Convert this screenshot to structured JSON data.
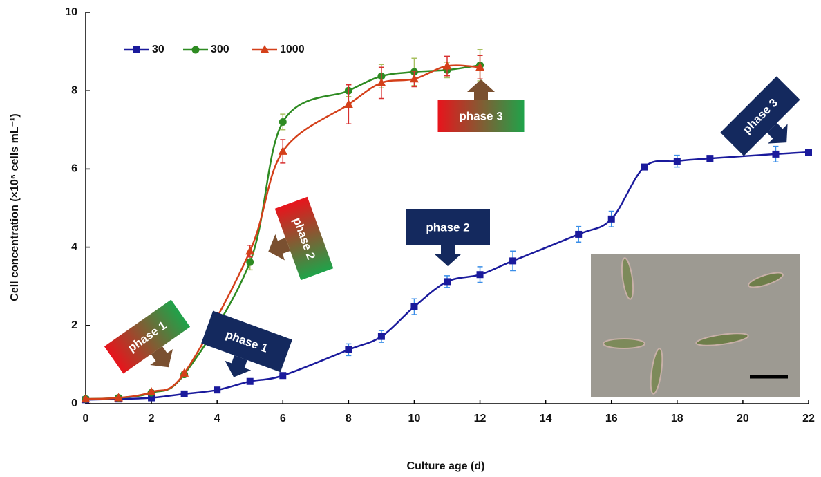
{
  "chart_data": {
    "type": "line",
    "x_label": "Culture age (d)",
    "y_label": "Cell concentration (×10⁶ cells mL⁻¹)",
    "xlim": [
      0,
      22
    ],
    "xticks": [
      0,
      2,
      4,
      6,
      8,
      10,
      12,
      14,
      16,
      18,
      20,
      22
    ],
    "ylim": [
      0,
      10
    ],
    "yticks": [
      0,
      2,
      4,
      6,
      8,
      10
    ],
    "legend": "top-left",
    "smooth": true,
    "series": [
      {
        "name": "30",
        "color": "#1a1a9c",
        "error_color": "#3a8ee8",
        "marker": "square",
        "x": [
          0,
          1,
          2,
          3,
          4,
          5,
          6,
          8,
          9,
          10,
          11,
          12,
          13,
          15,
          16,
          17,
          18,
          19,
          21,
          22
        ],
        "values": [
          0.1,
          0.12,
          0.15,
          0.25,
          0.35,
          0.57,
          0.72,
          1.38,
          1.72,
          2.48,
          3.12,
          3.3,
          3.65,
          4.33,
          4.72,
          6.05,
          6.2,
          6.27,
          6.38,
          6.43
        ],
        "errors": [
          0.02,
          0.02,
          0.03,
          0.03,
          0.04,
          0.05,
          0.05,
          0.15,
          0.15,
          0.2,
          0.15,
          0.2,
          0.25,
          0.2,
          0.2,
          0.05,
          0.15,
          0.05,
          0.2,
          0.05
        ]
      },
      {
        "name": "300",
        "color": "#2e8b22",
        "error_color": "#a8c060",
        "marker": "circle",
        "x": [
          0,
          1,
          2,
          3,
          5,
          6,
          8,
          9,
          10,
          11,
          12
        ],
        "values": [
          0.12,
          0.15,
          0.28,
          0.75,
          3.62,
          7.2,
          8.0,
          8.37,
          8.48,
          8.53,
          8.65
        ],
        "errors": [
          0.02,
          0.02,
          0.03,
          0.05,
          0.2,
          0.2,
          0.15,
          0.3,
          0.35,
          0.2,
          0.4
        ]
      },
      {
        "name": "1000",
        "color": "#d4401a",
        "error_color": "#d83030",
        "marker": "triangle",
        "x": [
          0,
          1,
          2,
          3,
          5,
          6,
          8,
          9,
          10,
          11,
          12
        ],
        "values": [
          0.12,
          0.15,
          0.3,
          0.78,
          3.9,
          6.45,
          7.65,
          8.2,
          8.3,
          8.63,
          8.6
        ],
        "errors": [
          0.02,
          0.02,
          0.03,
          0.05,
          0.15,
          0.3,
          0.5,
          0.4,
          0.2,
          0.25,
          0.3
        ]
      }
    ],
    "annotations": [
      {
        "text": "phase 1"
      },
      {
        "text": "phase 1"
      },
      {
        "text": "phase 2"
      },
      {
        "text": "phase 2"
      },
      {
        "text": "phase 3"
      },
      {
        "text": "phase 3"
      }
    ]
  }
}
